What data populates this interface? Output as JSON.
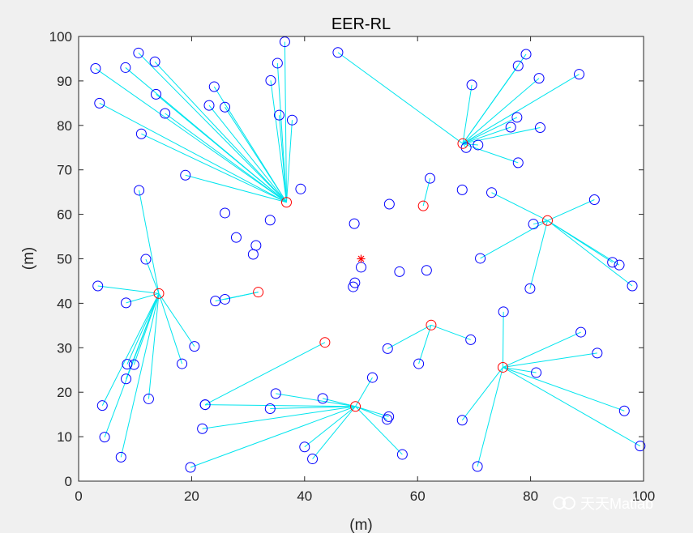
{
  "chart_data": {
    "type": "scatter",
    "title": "EER-RL",
    "xlabel": "(m)",
    "ylabel": "(m)",
    "xlim": [
      0,
      100
    ],
    "ylim": [
      0,
      100
    ],
    "xticks": [
      0,
      20,
      40,
      60,
      80,
      100
    ],
    "yticks": [
      0,
      10,
      20,
      30,
      40,
      50,
      60,
      70,
      80,
      90,
      100
    ],
    "grid": false,
    "marker_color": "#0000ff",
    "cluster_head_color": "#ff0000",
    "link_color": "#00e5ee",
    "sink": {
      "x": 50,
      "y": 50,
      "marker": "star"
    },
    "cluster_heads": [
      {
        "x": 36.8,
        "y": 62.7,
        "members": [
          [
            36.5,
            98.8
          ],
          [
            35.2,
            94.0
          ],
          [
            34.0,
            90.1
          ],
          [
            35.5,
            82.3
          ],
          [
            37.8,
            81.2
          ],
          [
            13.5,
            94.3
          ],
          [
            10.6,
            96.3
          ],
          [
            8.3,
            93.0
          ],
          [
            3.0,
            92.8
          ],
          [
            3.7,
            85.0
          ],
          [
            13.7,
            87.0
          ],
          [
            15.3,
            82.7
          ],
          [
            24.0,
            88.7
          ],
          [
            25.9,
            84.1
          ],
          [
            23.1,
            84.5
          ],
          [
            11.1,
            78.1
          ],
          [
            18.9,
            68.8
          ]
        ]
      },
      {
        "x": 68.0,
        "y": 75.9,
        "members": [
          [
            45.9,
            96.4
          ],
          [
            69.6,
            89.1
          ],
          [
            77.8,
            93.4
          ],
          [
            79.2,
            96.0
          ],
          [
            81.5,
            90.6
          ],
          [
            88.6,
            91.5
          ],
          [
            77.6,
            81.8
          ],
          [
            76.5,
            79.6
          ],
          [
            81.7,
            79.5
          ],
          [
            77.8,
            71.6
          ],
          [
            68.6,
            75.0
          ],
          [
            70.7,
            75.6
          ]
        ]
      },
      {
        "x": 83.0,
        "y": 58.6,
        "members": [
          [
            73.1,
            64.9
          ],
          [
            91.3,
            63.3
          ],
          [
            80.5,
            57.8
          ],
          [
            71.1,
            50.1
          ],
          [
            79.9,
            43.3
          ],
          [
            94.5,
            49.2
          ],
          [
            95.7,
            48.6
          ],
          [
            98.0,
            43.9
          ]
        ]
      },
      {
        "x": 14.2,
        "y": 42.2,
        "members": [
          [
            10.7,
            65.4
          ],
          [
            11.9,
            49.9
          ],
          [
            3.4,
            43.9
          ],
          [
            8.4,
            40.1
          ],
          [
            18.3,
            26.4
          ],
          [
            20.5,
            30.3
          ],
          [
            8.6,
            26.3
          ],
          [
            9.8,
            26.2
          ],
          [
            8.4,
            23.0
          ],
          [
            12.4,
            18.5
          ],
          [
            4.2,
            17.0
          ],
          [
            4.6,
            9.9
          ],
          [
            7.5,
            5.4
          ]
        ]
      },
      {
        "x": 31.8,
        "y": 42.5,
        "members": [
          [
            24.2,
            40.5
          ],
          [
            25.9,
            40.9
          ]
        ]
      },
      {
        "x": 61.0,
        "y": 61.9,
        "members": [
          [
            62.2,
            68.1
          ]
        ]
      },
      {
        "x": 62.4,
        "y": 35.1,
        "members": [
          [
            54.7,
            29.8
          ],
          [
            60.2,
            26.4
          ],
          [
            69.4,
            31.8
          ]
        ]
      },
      {
        "x": 75.1,
        "y": 25.6,
        "members": [
          [
            75.2,
            38.1
          ],
          [
            88.9,
            33.5
          ],
          [
            91.8,
            28.8
          ],
          [
            81.0,
            24.4
          ],
          [
            96.6,
            15.8
          ],
          [
            99.4,
            7.9
          ],
          [
            67.9,
            13.7
          ],
          [
            70.6,
            3.3
          ]
        ]
      },
      {
        "x": 49.0,
        "y": 16.8,
        "members": [
          [
            52.0,
            23.3
          ],
          [
            43.2,
            18.6
          ],
          [
            34.9,
            19.7
          ],
          [
            33.9,
            16.3
          ],
          [
            22.4,
            17.2
          ],
          [
            21.9,
            11.8
          ],
          [
            54.9,
            14.5
          ],
          [
            54.6,
            13.9
          ],
          [
            57.3,
            6.0
          ],
          [
            40.0,
            7.7
          ],
          [
            41.4,
            5.0
          ],
          [
            19.8,
            3.1
          ]
        ]
      },
      {
        "x": 43.6,
        "y": 31.2,
        "members": [
          [
            22.4,
            17.2
          ]
        ]
      }
    ],
    "unclustered_nodes": [
      [
        39.3,
        65.7
      ],
      [
        25.9,
        60.3
      ],
      [
        33.9,
        58.7
      ],
      [
        31.4,
        53.0
      ],
      [
        30.9,
        51.0
      ],
      [
        27.9,
        54.8
      ],
      [
        48.8,
        57.9
      ],
      [
        55.0,
        62.3
      ],
      [
        67.9,
        65.5
      ],
      [
        50.0,
        48.1
      ],
      [
        48.9,
        44.6
      ],
      [
        48.6,
        43.7
      ],
      [
        56.8,
        47.1
      ],
      [
        61.6,
        47.4
      ]
    ]
  },
  "watermark": {
    "text": "天天Matlab",
    "icon": "wechat-channel-icon"
  }
}
